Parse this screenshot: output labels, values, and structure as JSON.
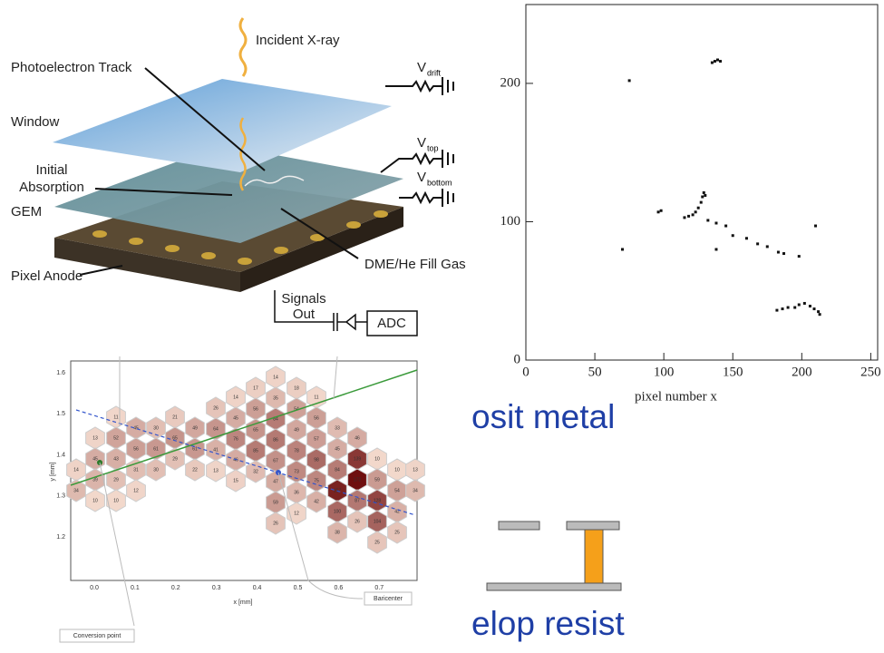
{
  "diagram": {
    "incident": "Incident X-ray",
    "track": "Photoelectron Track",
    "window": "Window",
    "absorption": [
      "Initial",
      "Absorption"
    ],
    "gem": "GEM",
    "anode": "Pixel Anode",
    "gas": "DME/He Fill Gas",
    "signals": [
      "Signals",
      "Out"
    ],
    "adc": "ADC",
    "voltages": [
      {
        "symbol": "V",
        "sub": "drift"
      },
      {
        "symbol": "V",
        "sub": "top"
      },
      {
        "symbol": "V",
        "sub": "bottom"
      }
    ]
  },
  "chart_data": {
    "type": "scatter",
    "x_label": "pixel number x",
    "color": "#111111",
    "xlim": [
      0,
      255
    ],
    "ylim": [
      0,
      257
    ],
    "xticks": [
      0,
      50,
      100,
      150,
      200,
      250
    ],
    "yticks": [
      0,
      100,
      200
    ],
    "x": [
      135,
      137,
      139,
      141,
      75,
      96,
      98,
      115,
      118,
      121,
      123,
      125,
      127,
      128,
      129,
      130,
      132,
      138,
      145,
      150,
      160,
      168,
      175,
      183,
      187,
      198,
      210,
      70,
      138,
      182,
      186,
      190,
      195,
      198,
      202,
      206,
      209,
      212,
      213
    ],
    "values": [
      215,
      216,
      217,
      216,
      202,
      107,
      108,
      103,
      104,
      105,
      107,
      110,
      114,
      118,
      121,
      119,
      101,
      99,
      97,
      90,
      88,
      84,
      82,
      78,
      77,
      75,
      97,
      80,
      80,
      36,
      37,
      38,
      38,
      40,
      41,
      39,
      37,
      35,
      33
    ]
  },
  "hexmap": {
    "x_label": "x [mm]",
    "y_label": "y [mm]",
    "xticks": [
      "0.0",
      "0.1",
      "0.2",
      "0.3",
      "0.4",
      "0.5",
      "0.6",
      "0.7"
    ],
    "yticks": [
      "1.6",
      "1.5",
      "1.4",
      "1.3",
      "1.2"
    ],
    "conversion": "Conversion point",
    "baricenter": "Baricenter",
    "columns": [
      {
        "values": [
          14,
          34
        ]
      },
      {
        "values": [
          13,
          45,
          39,
          10
        ]
      },
      {
        "values": [
          11,
          52,
          43,
          29,
          10
        ]
      },
      {
        "values": [
          45,
          56,
          31,
          12
        ]
      },
      {
        "values": [
          30,
          61,
          30
        ]
      },
      {
        "values": [
          21,
          65,
          29
        ]
      },
      {
        "values": [
          49,
          61,
          22
        ]
      },
      {
        "values": [
          26,
          64,
          41,
          13
        ]
      },
      {
        "values": [
          14,
          45,
          76,
          46,
          15
        ]
      },
      {
        "values": [
          17,
          56,
          65,
          85,
          32
        ]
      },
      {
        "values": [
          14,
          35,
          84,
          86,
          67,
          47,
          59,
          26
        ]
      },
      {
        "values": [
          18,
          54,
          49,
          78,
          73,
          36,
          12
        ]
      },
      {
        "values": [
          11,
          56,
          57,
          98,
          75,
          42
        ]
      },
      {
        "values": [
          33,
          45,
          84,
          157,
          100,
          38
        ]
      },
      {
        "values": [
          46,
          139,
          172,
          87,
          26
        ]
      },
      {
        "values": [
          10,
          59,
          128,
          104,
          25
        ]
      },
      {
        "values": [
          10,
          54,
          42,
          25
        ]
      },
      {
        "values": [
          13,
          34
        ]
      }
    ]
  },
  "slide": {
    "line1": "osit metal",
    "line2": "elop resist"
  }
}
